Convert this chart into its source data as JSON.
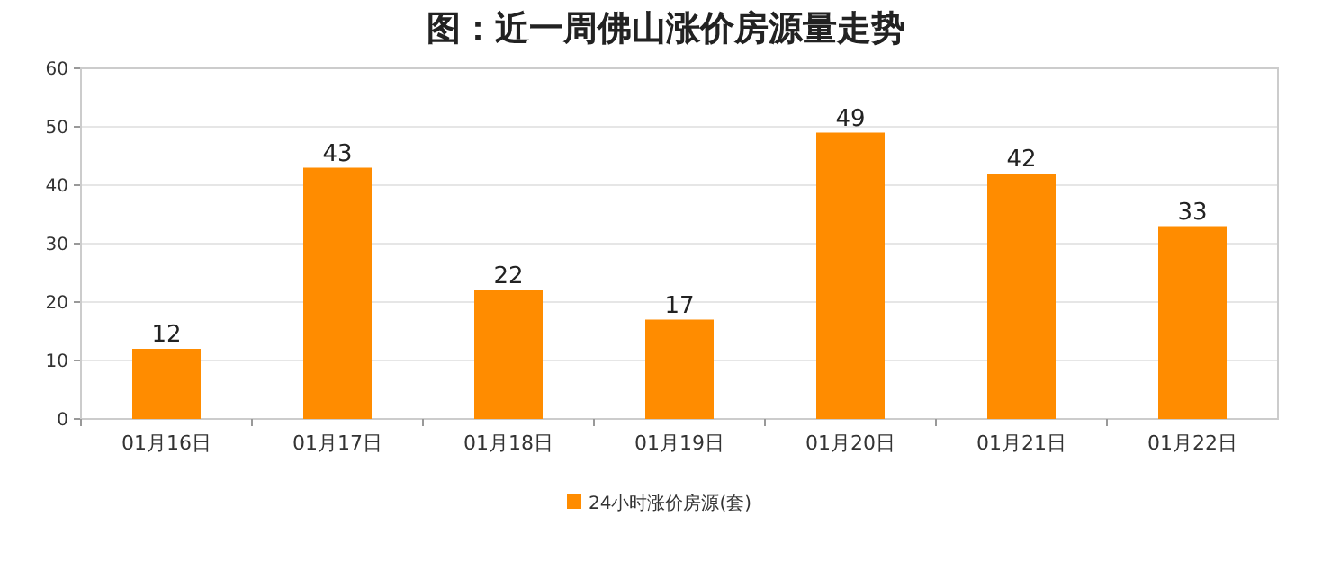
{
  "chart_data": {
    "type": "bar",
    "title": "图：近一周佛山涨价房源量走势",
    "categories": [
      "01月16日",
      "01月17日",
      "01月18日",
      "01月19日",
      "01月20日",
      "01月21日",
      "01月22日"
    ],
    "series": [
      {
        "name": "24小时涨价房源(套)",
        "color": "#ff8c00",
        "values": [
          12,
          43,
          22,
          17,
          49,
          42,
          33
        ]
      }
    ],
    "ylim": [
      0,
      60
    ],
    "yticks": [
      0,
      10,
      20,
      30,
      40,
      50,
      60
    ],
    "grid": "y",
    "legend": "bottom",
    "data_labels": true
  }
}
